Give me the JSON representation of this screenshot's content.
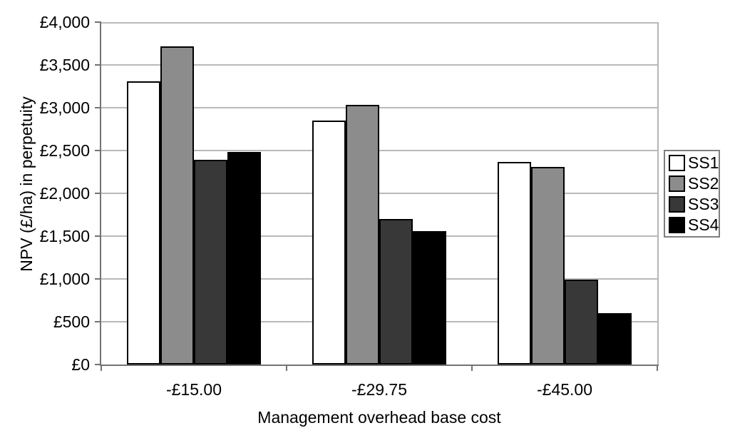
{
  "chart_data": {
    "type": "bar",
    "title": "",
    "xlabel": "Management overhead base cost",
    "ylabel": "NPV (£/ha) in perpetuity",
    "categories": [
      "-£15.00",
      "-£29.75",
      "-£45.00"
    ],
    "series": [
      {
        "name": "SS1",
        "color": "#ffffff",
        "values": [
          3310,
          2850,
          2370
        ]
      },
      {
        "name": "SS2",
        "color": "#8c8c8c",
        "values": [
          3720,
          3030,
          2310
        ]
      },
      {
        "name": "SS3",
        "color": "#383838",
        "values": [
          2390,
          1700,
          990
        ]
      },
      {
        "name": "SS4",
        "color": "#000000",
        "values": [
          2480,
          1560,
          600
        ]
      }
    ],
    "ylim": [
      0,
      4000
    ],
    "ytick_step": 500,
    "yticks": [
      {
        "value": 0,
        "label": "£0"
      },
      {
        "value": 500,
        "label": "£500"
      },
      {
        "value": 1000,
        "label": "£1,000"
      },
      {
        "value": 1500,
        "label": "£1,500"
      },
      {
        "value": 2000,
        "label": "£2,000"
      },
      {
        "value": 2500,
        "label": "£2,500"
      },
      {
        "value": 3000,
        "label": "£3,000"
      },
      {
        "value": 3500,
        "label": "£3,500"
      },
      {
        "value": 4000,
        "label": "£4,000"
      }
    ],
    "grid": true,
    "legend_position": "right",
    "colors": {
      "gridline": "#b9b9b9",
      "axis": "#737373",
      "bar_outline": "#000000",
      "legend_border": "#7f7f7f",
      "text": "#000000"
    }
  }
}
